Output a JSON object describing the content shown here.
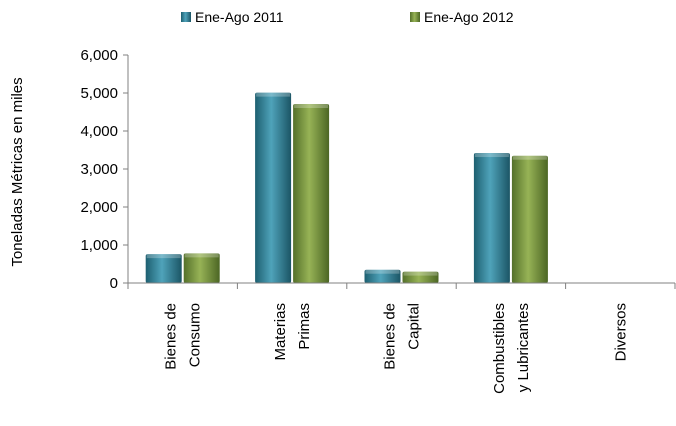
{
  "chart_data": {
    "type": "bar",
    "title": "",
    "xlabel": "",
    "ylabel": "Toneladas Métricas en miles",
    "ylim": [
      0,
      6000
    ],
    "yticks": [
      "0",
      "1,000",
      "2,000",
      "3,000",
      "4,000",
      "5,000",
      "6,000"
    ],
    "legend_position": "top",
    "grid": false,
    "categories": [
      [
        "Bienes de",
        "Consumo"
      ],
      [
        "Materias",
        "Primas"
      ],
      [
        "Bienes de",
        "Capital"
      ],
      [
        "Combustibles",
        "y Lubricantes"
      ],
      [
        "Diversos"
      ]
    ],
    "series": [
      {
        "name": "Ene-Ago 2011",
        "color": "#31859c",
        "values": [
          760,
          5010,
          350,
          3420,
          0
        ]
      },
      {
        "name": "Ene-Ago 2012",
        "color": "#76923c",
        "values": [
          780,
          4710,
          300,
          3350,
          0
        ]
      }
    ]
  }
}
